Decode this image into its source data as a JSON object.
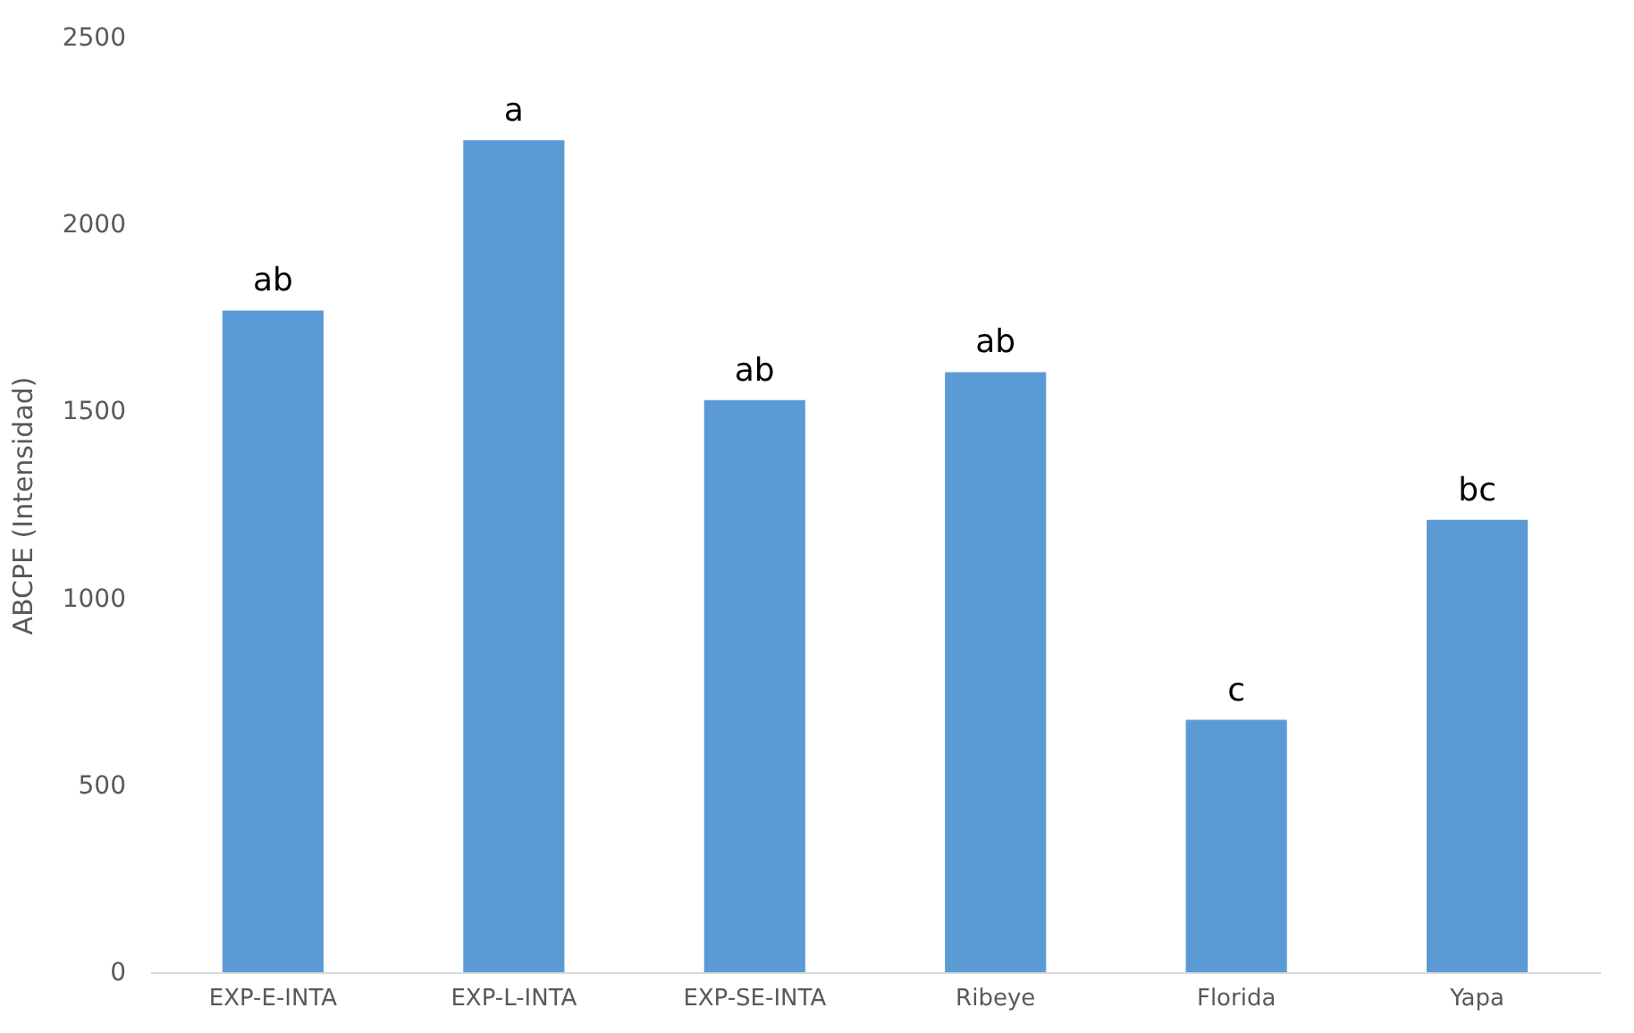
{
  "chart_data": {
    "type": "bar",
    "ylabel": "ABCPE (Intensidad)",
    "categories": [
      "EXP-E-INTA",
      "EXP-L-INTA",
      "EXP-SE-INTA",
      "Ribeye",
      "Florida",
      "Yapa"
    ],
    "values": [
      1770,
      2225,
      1530,
      1605,
      675,
      1210
    ],
    "color": "#5b9bd5",
    "ylim": [
      0,
      2500
    ],
    "yticks": [
      0,
      500,
      1000,
      1500,
      2000,
      2500
    ],
    "grid": false,
    "annotations": [
      {
        "text": "ab",
        "x": "EXP-E-INTA",
        "y": 1770
      },
      {
        "text": "a",
        "x": "EXP-L-INTA",
        "y": 2225
      },
      {
        "text": "ab",
        "x": "EXP-SE-INTA",
        "y": 1530
      },
      {
        "text": "ab",
        "x": "Ribeye",
        "y": 1605
      },
      {
        "text": "c",
        "x": "Florida",
        "y": 675
      },
      {
        "text": "bc",
        "x": "Yapa",
        "y": 1210
      }
    ]
  }
}
